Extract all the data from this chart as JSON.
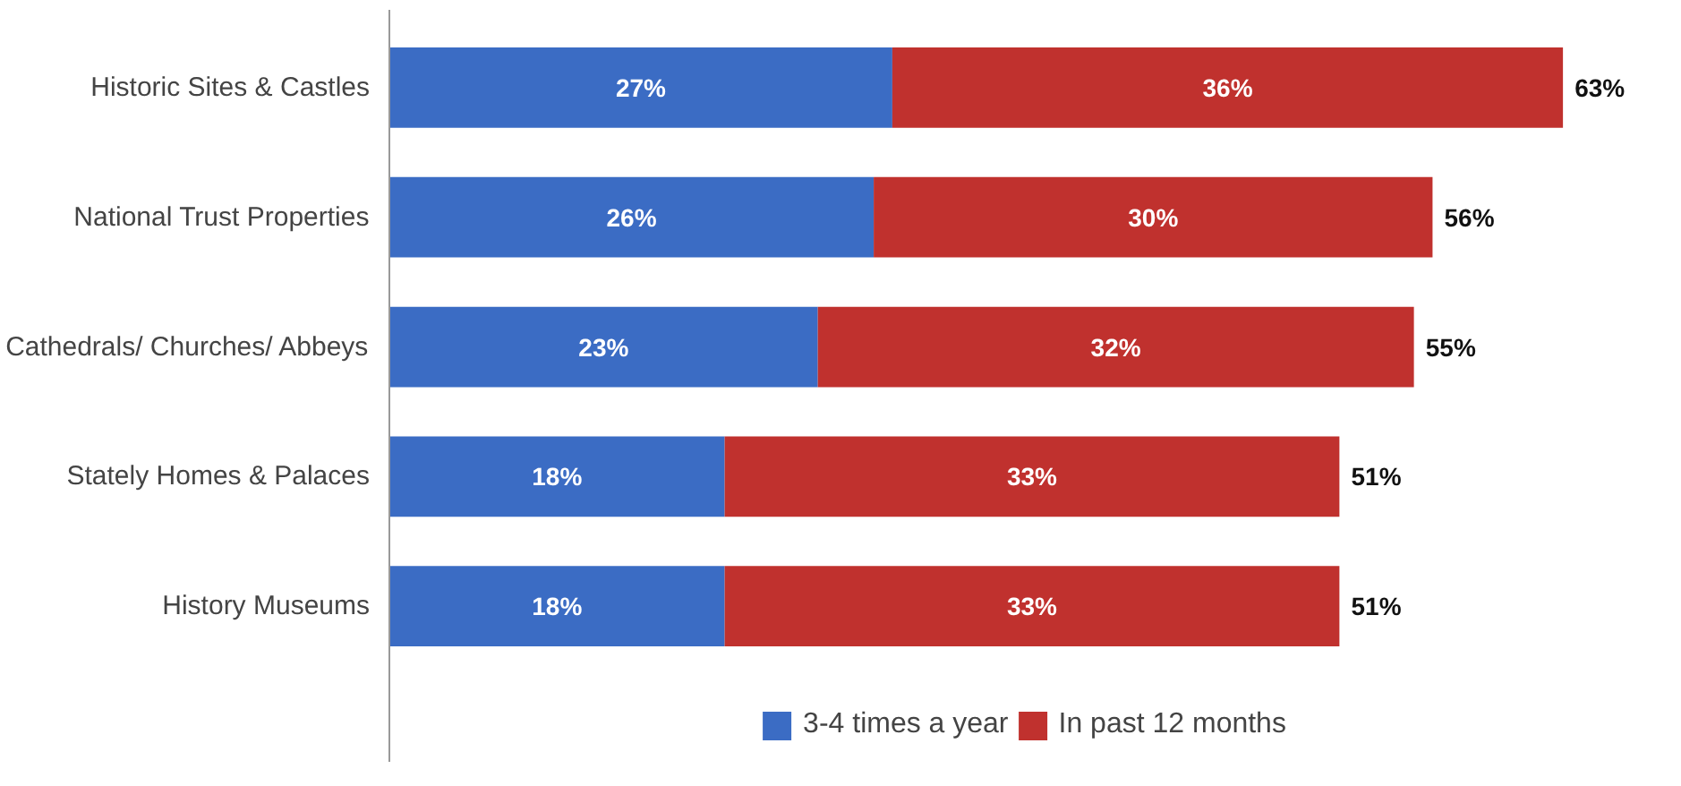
{
  "chart_data": {
    "type": "bar",
    "orientation": "horizontal",
    "stacked": true,
    "categories": [
      "Historic Sites & Castles",
      "National Trust Properties",
      "Cathedrals/ Churches/ Abbeys",
      "Stately Homes & Palaces",
      "History Museums"
    ],
    "series": [
      {
        "name": "3-4 times a year",
        "color": "#3b6cc4",
        "values": [
          27,
          26,
          23,
          18,
          18
        ],
        "value_labels": [
          "27%",
          "26%",
          "23%",
          "18%",
          "18%"
        ]
      },
      {
        "name": "In past 12 months",
        "color": "#c0312e",
        "values": [
          36,
          30,
          32,
          33,
          33
        ],
        "value_labels": [
          "36%",
          "30%",
          "32%",
          "33%",
          "33%"
        ]
      }
    ],
    "totals": [
      "63%",
      "56%",
      "55%",
      "51%",
      "51%"
    ],
    "legend": "bottom",
    "grid": false
  }
}
